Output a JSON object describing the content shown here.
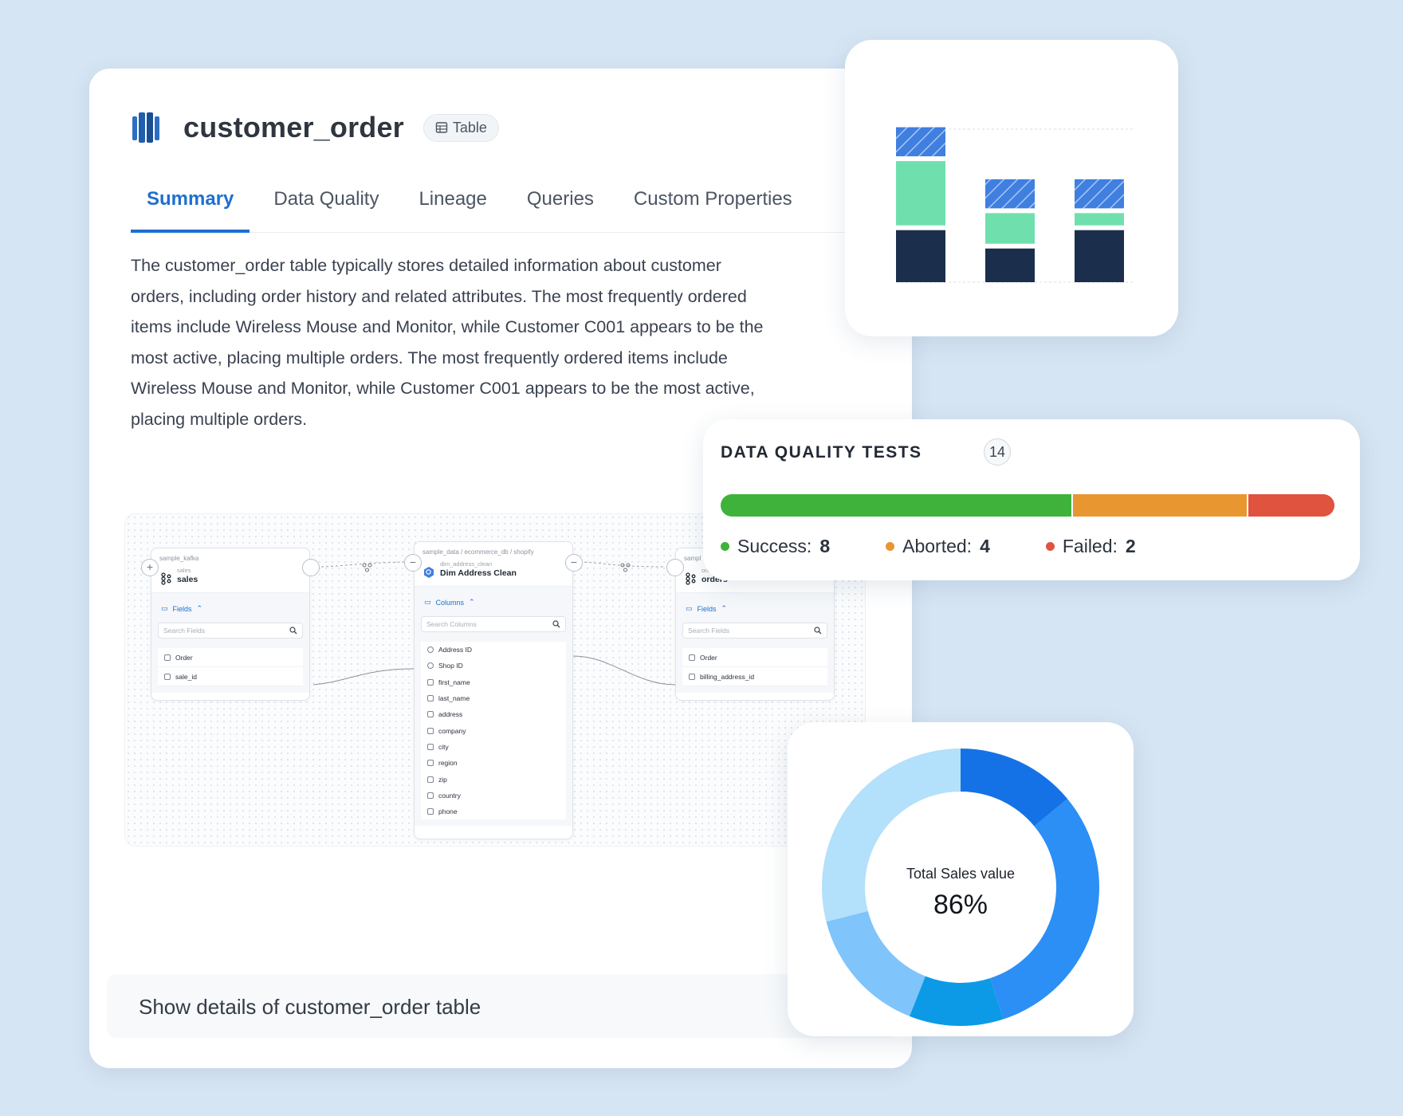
{
  "asset": {
    "title": "customer_order",
    "type_label": "Table"
  },
  "tabs": [
    {
      "label": "Summary",
      "active": true
    },
    {
      "label": "Data Quality",
      "active": false
    },
    {
      "label": "Lineage",
      "active": false
    },
    {
      "label": "Queries",
      "active": false
    },
    {
      "label": "Custom Properties",
      "active": false
    }
  ],
  "description": "The customer_order table typically stores detailed information about customer orders, including order history and related attributes. The most frequently ordered items include Wireless Mouse and Monitor, while Customer C001 appears to be the most active, placing multiple orders. The most frequently ordered items include Wireless Mouse and Monitor, while Customer C001 appears to be the most active, placing multiple orders.",
  "lineage": {
    "source_node": {
      "path": "sample_kafka",
      "sub": "sales",
      "name": "sales",
      "section_label": "Fields",
      "search_placeholder": "Search Fields",
      "fields": [
        "Order",
        "sale_id"
      ]
    },
    "middle_node": {
      "path": "sample_data  /  ecommerce_db  /  shopify",
      "sub": "dim_address_clean",
      "name": "Dim Address Clean",
      "section_label": "Columns",
      "search_placeholder": "Search Columns",
      "columns": [
        "Address ID",
        "Shop ID",
        "first_name",
        "last_name",
        "address",
        "company",
        "city",
        "region",
        "zip",
        "country",
        "phone"
      ]
    },
    "target_node": {
      "path": "sampl",
      "sub": "ord",
      "name": "orders",
      "section_label": "Fields",
      "search_placeholder": "Search Fields",
      "fields": [
        "Order",
        "billing_address_id"
      ]
    }
  },
  "prompt": {
    "text": "Show details of customer_order table"
  },
  "stacked_chart": {
    "type": "bar",
    "categories": [
      "",
      "",
      ""
    ],
    "ylim": [
      0,
      100
    ],
    "series": [
      {
        "values": [
          34,
          22,
          34
        ],
        "color": "#1b2f4d",
        "pattern": "solid"
      },
      {
        "values": [
          42,
          20,
          8
        ],
        "color": "#6fe0ad",
        "pattern": "solid"
      },
      {
        "values": [
          19,
          19,
          19
        ],
        "color": "#3f7fe0",
        "pattern": "hatched"
      }
    ]
  },
  "data_quality": {
    "title": "DATA QUALITY TESTS",
    "total": "14",
    "items": [
      {
        "label": "Success:",
        "value": "8",
        "color": "#3fb23b"
      },
      {
        "label": "Aborted:",
        "value": "4",
        "color": "#e8962f"
      },
      {
        "label": "Failed:",
        "value": "2",
        "color": "#e0533f"
      }
    ]
  },
  "donut": {
    "label": "Total Sales value",
    "value_text": "86%",
    "segments": [
      {
        "value": 14,
        "color": "#1572e6"
      },
      {
        "value": 31,
        "color": "#2b8ff5"
      },
      {
        "value": 11,
        "color": "#0c9ae6"
      },
      {
        "value": 15,
        "color": "#7fc4fb"
      },
      {
        "value": 29,
        "color": "#b3e0fa"
      }
    ]
  }
}
